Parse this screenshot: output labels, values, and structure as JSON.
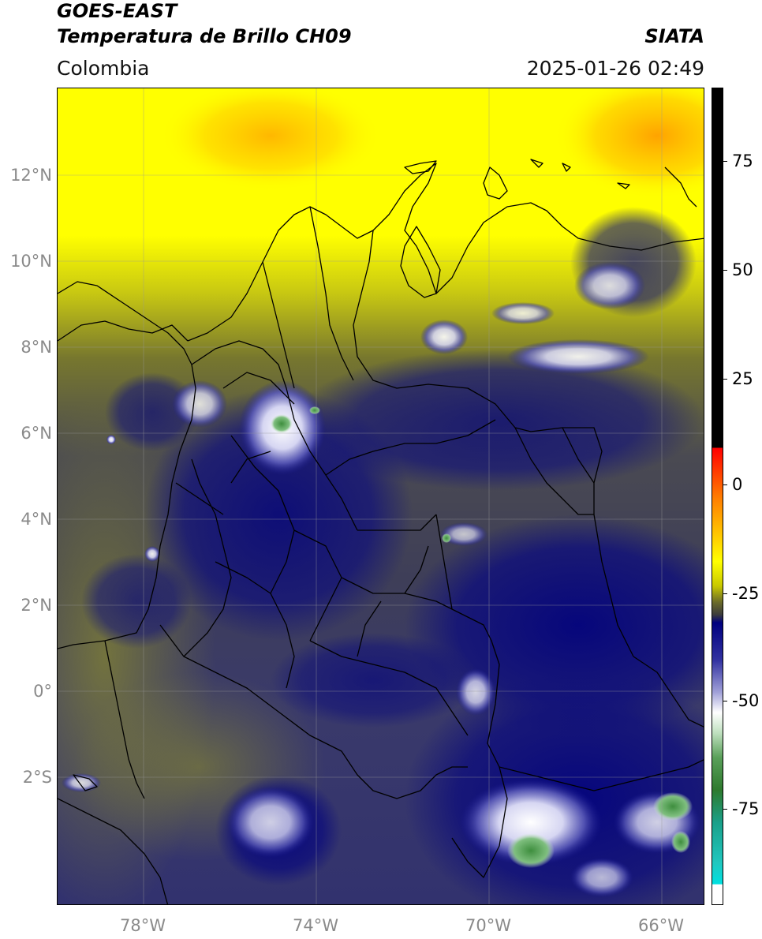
{
  "header": {
    "title_line1": "GOES-EAST",
    "title_line2": "Temperatura de Brillo CH09",
    "brand": "SIATA",
    "region": "Colombia",
    "timestamp": "2025-01-26 02:49"
  },
  "map": {
    "lon_range": [
      -80,
      -65
    ],
    "lat_range": [
      -5,
      14
    ],
    "lat_labels": [
      "12°N",
      "10°N",
      "8°N",
      "6°N",
      "4°N",
      "2°N",
      "0°",
      "2°S"
    ],
    "lon_labels": [
      "78°W",
      "74°W",
      "70°W",
      "66°W"
    ],
    "colors": {
      "warm_yellow": "#ffff00",
      "orange": "#ff9900",
      "olive": "#77772e",
      "dark_gray": "#46464a",
      "navy": "#00007f",
      "white": "#ffffff",
      "green": "#3e8e3e"
    }
  },
  "colorbar": {
    "tick_labels": [
      "75",
      "50",
      "25",
      "0",
      "-25",
      "-50",
      "-75"
    ],
    "tick_values": [
      75,
      50,
      25,
      0,
      -25,
      -50,
      -75
    ]
  }
}
